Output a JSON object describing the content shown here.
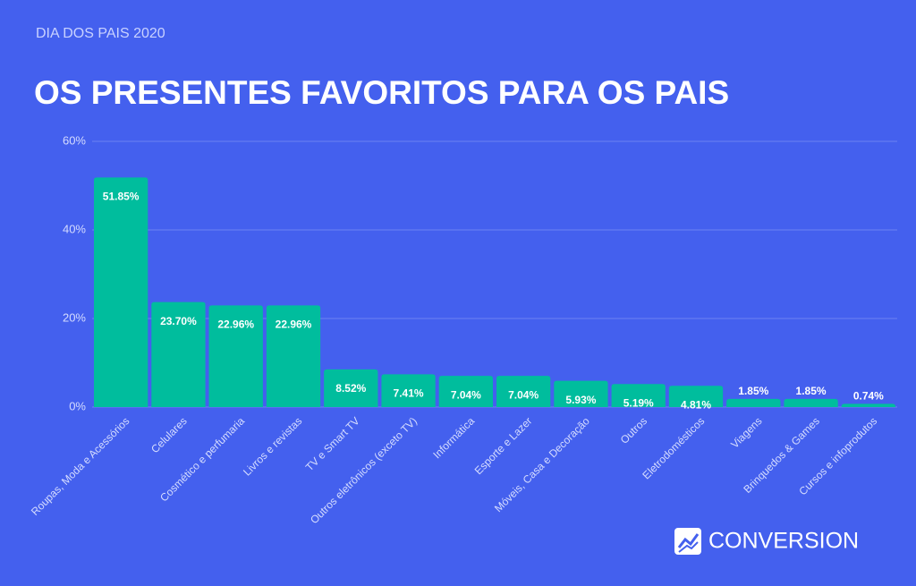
{
  "chart_data": {
    "type": "bar",
    "subtitle": "DIA DOS PAIS 2020",
    "title": "OS PRESENTES FAVORITOS PARA OS PAIS",
    "categories": [
      "Roupas, Moda e Acessórios",
      "Celulares",
      "Cosmético e perfumaria",
      "Livros e revistas",
      "TV e Smart TV",
      "Outros eletrônicos (exceto TV)",
      "Informática",
      "Esporte e Lazer",
      "Móveis, Casa e Decoração",
      "Outros",
      "Eletrodomésticos",
      "Viagens",
      "Brinquedos & Games",
      "Cursos e infoprodutos"
    ],
    "values": [
      51.85,
      23.7,
      22.96,
      22.96,
      8.52,
      7.41,
      7.04,
      7.04,
      5.93,
      5.19,
      4.81,
      1.85,
      1.85,
      0.74
    ],
    "value_labels": [
      "51.85%",
      "23.70%",
      "22.96%",
      "22.96%",
      "8.52%",
      "7.41%",
      "7.04%",
      "7.04%",
      "5.93%",
      "5.19%",
      "4.81%",
      "1.85%",
      "1.85%",
      "0.74%"
    ],
    "color": "#00bd9d",
    "ylim": [
      0,
      60
    ],
    "yticks": [
      {
        "value": 0,
        "label": "0%"
      },
      {
        "value": 20,
        "label": "20%"
      },
      {
        "value": 40,
        "label": "40%"
      },
      {
        "value": 60,
        "label": "60%"
      }
    ],
    "grid": true,
    "brand": "CONVERSION"
  }
}
